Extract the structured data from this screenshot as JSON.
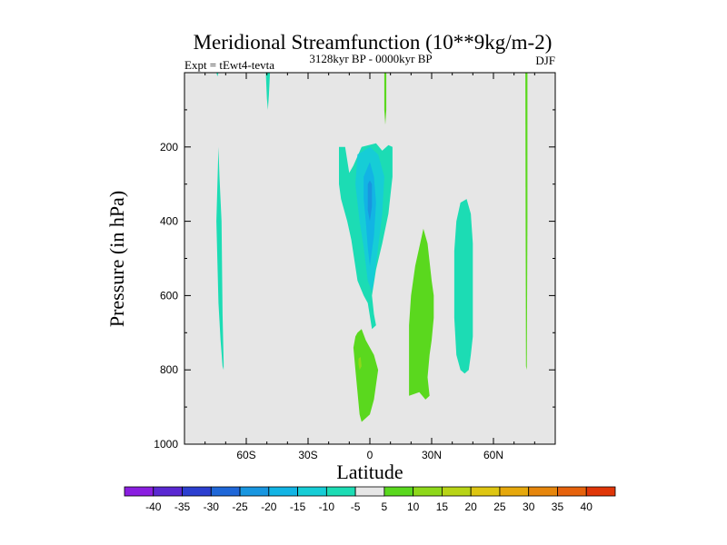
{
  "chart_data": {
    "type": "contour",
    "title": "Meridional Streamfunction (10**9kg/m-2)",
    "left_string": "Expt = tEwt4-tevta",
    "center_string": "3128kyr BP - 0000kyr BP",
    "right_string": "DJF",
    "xlabel": "Latitude",
    "ylabel": "Pressure (in hPa)",
    "xlim": [
      -90,
      90
    ],
    "ylim": [
      1000,
      0
    ],
    "x_ticks": [
      {
        "value": -60,
        "label": "60S"
      },
      {
        "value": -30,
        "label": "30S"
      },
      {
        "value": 0,
        "label": "0"
      },
      {
        "value": 30,
        "label": "30N"
      },
      {
        "value": 60,
        "label": "60N"
      }
    ],
    "y_ticks": [
      {
        "value": 200,
        "label": "200"
      },
      {
        "value": 400,
        "label": "400"
      },
      {
        "value": 600,
        "label": "600"
      },
      {
        "value": 800,
        "label": "800"
      },
      {
        "value": 1000,
        "label": "1000"
      }
    ],
    "colorbar": {
      "colors": [
        "#8a1ee0",
        "#5a28d2",
        "#2c3fd0",
        "#1f67d8",
        "#1896e0",
        "#12b4e4",
        "#16cdd6",
        "#1cdcb4",
        "#e6e6e6",
        "#5ad81e",
        "#8ed81a",
        "#b8d416",
        "#dec612",
        "#e6a80c",
        "#e6860c",
        "#e6620c",
        "#e03608"
      ],
      "labels": [
        "-40",
        "-35",
        "-30",
        "-25",
        "-20",
        "-15",
        "-10",
        "-5",
        "5",
        "10",
        "15",
        "20",
        "25",
        "30",
        "35",
        "40"
      ]
    },
    "regions": [
      {
        "name": "south-polar-cell",
        "value_class": -5,
        "color": "#1cdcb4",
        "polygon": [
          [
            -74.5,
            400
          ],
          [
            -73.5,
            620
          ],
          [
            -72.5,
            720
          ],
          [
            -71.5,
            790
          ],
          [
            -71,
            800
          ],
          [
            -71,
            780
          ],
          [
            -71.5,
            650
          ],
          [
            -72,
            400
          ],
          [
            -73,
            280
          ],
          [
            -73.5,
            200
          ]
        ]
      },
      {
        "name": "upper-sliver-50S",
        "value_class": -5,
        "color": "#1cdcb4",
        "polygon": [
          [
            -50.5,
            0
          ],
          [
            -48.5,
            0
          ],
          [
            -49,
            60
          ],
          [
            -49.5,
            100
          ],
          [
            -50,
            70
          ]
        ]
      },
      {
        "name": "upper-sliver-75S",
        "value_class": -5,
        "color": "#1cdcb4",
        "polygon": [
          [
            -74.5,
            0
          ],
          [
            -73.5,
            0
          ],
          [
            -74,
            10
          ]
        ]
      },
      {
        "name": "tropical-cell-outer",
        "value_class": -5,
        "color": "#1cdcb4",
        "polygon": [
          [
            -15,
            200
          ],
          [
            -12,
            200
          ],
          [
            -10,
            270
          ],
          [
            -8,
            250
          ],
          [
            -4,
            200
          ],
          [
            3,
            190
          ],
          [
            6,
            210
          ],
          [
            9,
            195
          ],
          [
            11,
            200
          ],
          [
            11,
            280
          ],
          [
            9,
            380
          ],
          [
            6,
            460
          ],
          [
            3,
            530
          ],
          [
            1,
            600
          ],
          [
            2,
            650
          ],
          [
            3,
            680
          ],
          [
            1,
            690
          ],
          [
            -1,
            620
          ],
          [
            -3,
            600
          ],
          [
            -6,
            560
          ],
          [
            -9,
            450
          ],
          [
            -11,
            400
          ],
          [
            -14,
            340
          ],
          [
            -15,
            300
          ]
        ]
      },
      {
        "name": "tropical-cell-inner",
        "value_class": -10,
        "color": "#16cdd6",
        "polygon": [
          [
            -6,
            220
          ],
          [
            0,
            200
          ],
          [
            4,
            220
          ],
          [
            7,
            280
          ],
          [
            6,
            380
          ],
          [
            4,
            470
          ],
          [
            2,
            560
          ],
          [
            1,
            590
          ],
          [
            -1,
            560
          ],
          [
            -3,
            470
          ],
          [
            -5,
            400
          ],
          [
            -7,
            300
          ]
        ]
      },
      {
        "name": "tropical-cell-core",
        "value_class": -15,
        "color": "#12b4e4",
        "polygon": [
          [
            -3,
            280
          ],
          [
            0,
            240
          ],
          [
            2,
            280
          ],
          [
            3,
            350
          ],
          [
            2,
            440
          ],
          [
            0,
            520
          ],
          [
            -1,
            470
          ],
          [
            -2,
            400
          ],
          [
            -3,
            340
          ]
        ]
      },
      {
        "name": "tropical-cell-max",
        "value_class": -20,
        "color": "#1896e0",
        "polygon": [
          [
            -1,
            300
          ],
          [
            0,
            290
          ],
          [
            1,
            300
          ],
          [
            1,
            360
          ],
          [
            0,
            400
          ],
          [
            -1,
            370
          ]
        ]
      },
      {
        "name": "southern-hadley-pos",
        "value_class": 5,
        "color": "#5ad81e",
        "polygon": [
          [
            -7,
            710
          ],
          [
            -6,
            700
          ],
          [
            -4,
            690
          ],
          [
            -2,
            720
          ],
          [
            2,
            760
          ],
          [
            4,
            800
          ],
          [
            2,
            880
          ],
          [
            0,
            920
          ],
          [
            -2,
            930
          ],
          [
            -4,
            940
          ],
          [
            -5,
            920
          ],
          [
            -7,
            800
          ],
          [
            -8,
            740
          ]
        ]
      },
      {
        "name": "southern-hadley-max",
        "value_class": 10,
        "color": "#8ed81a",
        "polygon": [
          [
            -5.5,
            770
          ],
          [
            -4.5,
            765
          ],
          [
            -4,
            790
          ],
          [
            -5,
            800
          ],
          [
            -5.5,
            785
          ]
        ]
      },
      {
        "name": "northern-positive-cell",
        "value_class": 5,
        "color": "#5ad81e",
        "polygon": [
          [
            26,
            420
          ],
          [
            28,
            460
          ],
          [
            30,
            560
          ],
          [
            31,
            600
          ],
          [
            31,
            660
          ],
          [
            30,
            720
          ],
          [
            29,
            760
          ],
          [
            28,
            820
          ],
          [
            29,
            870
          ],
          [
            27,
            880
          ],
          [
            24,
            860
          ],
          [
            19,
            870
          ],
          [
            19,
            760
          ],
          [
            19,
            680
          ],
          [
            20,
            600
          ],
          [
            22,
            520
          ],
          [
            24,
            470
          ]
        ]
      },
      {
        "name": "midlat-negative-cell",
        "value_class": -5,
        "color": "#1cdcb4",
        "polygon": [
          [
            44,
            350
          ],
          [
            47,
            340
          ],
          [
            49,
            380
          ],
          [
            50,
            460
          ],
          [
            50,
            560
          ],
          [
            50,
            640
          ],
          [
            50,
            710
          ],
          [
            49,
            760
          ],
          [
            48,
            800
          ],
          [
            46,
            810
          ],
          [
            44,
            800
          ],
          [
            42,
            760
          ],
          [
            41,
            660
          ],
          [
            41,
            580
          ],
          [
            41,
            480
          ],
          [
            42,
            400
          ]
        ]
      },
      {
        "name": "upper-sliver-5N",
        "value_class": 5,
        "color": "#5ad81e",
        "polygon": [
          [
            7,
            0
          ],
          [
            8,
            0
          ],
          [
            8,
            100
          ],
          [
            7.5,
            140
          ],
          [
            7,
            100
          ]
        ]
      },
      {
        "name": "north-polar-sliver",
        "value_class": 5,
        "color": "#5ad81e",
        "polygon": [
          [
            75.5,
            0
          ],
          [
            76.5,
            0
          ],
          [
            76.5,
            400
          ],
          [
            76.2,
            800
          ],
          [
            75.8,
            790
          ],
          [
            75.6,
            400
          ]
        ]
      }
    ]
  }
}
